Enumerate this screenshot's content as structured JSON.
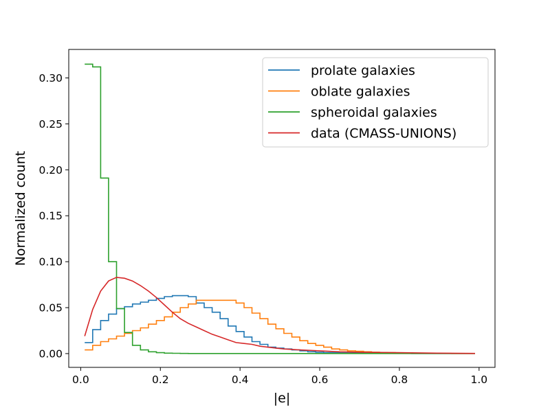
{
  "chart_data": {
    "type": "line",
    "title": "",
    "xlabel": "|e|",
    "ylabel": "Normalized count",
    "xlim": [
      -0.03,
      1.04
    ],
    "ylim": [
      -0.015,
      0.331
    ],
    "x_ticks": [
      0.0,
      0.2,
      0.4,
      0.6,
      0.8,
      1.0
    ],
    "x_tick_labels": [
      "0.0",
      "0.2",
      "0.4",
      "0.6",
      "0.8",
      "1.0"
    ],
    "y_ticks": [
      0.0,
      0.05,
      0.1,
      0.15,
      0.2,
      0.25,
      0.3
    ],
    "y_tick_labels": [
      "0.00",
      "0.05",
      "0.10",
      "0.15",
      "0.20",
      "0.25",
      "0.30"
    ],
    "grid": false,
    "legend_position": "top-right",
    "bin_edges": [
      0.01,
      0.03,
      0.05,
      0.07,
      0.09,
      0.11,
      0.13,
      0.15,
      0.17,
      0.19,
      0.21,
      0.23,
      0.25,
      0.27,
      0.29,
      0.31,
      0.33,
      0.35,
      0.37,
      0.39,
      0.41,
      0.43,
      0.45,
      0.47,
      0.49,
      0.51,
      0.53,
      0.55,
      0.57,
      0.59,
      0.61,
      0.63,
      0.65,
      0.67,
      0.69,
      0.71,
      0.73,
      0.75,
      0.77,
      0.79,
      0.81,
      0.83,
      0.85,
      0.87,
      0.89,
      0.91,
      0.93,
      0.95,
      0.97,
      0.99
    ],
    "series": [
      {
        "name": "prolate galaxies",
        "kind": "step",
        "color": "#1f77b4",
        "values": [
          0.012,
          0.026,
          0.036,
          0.043,
          0.049,
          0.051,
          0.054,
          0.056,
          0.058,
          0.06,
          0.062,
          0.063,
          0.063,
          0.062,
          0.055,
          0.05,
          0.045,
          0.038,
          0.03,
          0.024,
          0.018,
          0.013,
          0.01,
          0.007,
          0.006,
          0.005,
          0.004,
          0.003,
          0.002,
          0.0015,
          0.001,
          0.001,
          0.0008,
          0.0006,
          0.0005,
          0.0004,
          0.0003,
          0.0003,
          0.0002,
          0.0002,
          0.0002,
          0.0001,
          0.0001,
          0.0001,
          0.0001,
          0.0001,
          0.0001,
          0.0001,
          0.0001
        ]
      },
      {
        "name": "oblate galaxies",
        "kind": "step",
        "color": "#ff7f0e",
        "values": [
          0.004,
          0.009,
          0.013,
          0.016,
          0.019,
          0.022,
          0.025,
          0.028,
          0.032,
          0.036,
          0.04,
          0.045,
          0.05,
          0.054,
          0.058,
          0.058,
          0.058,
          0.058,
          0.058,
          0.055,
          0.05,
          0.044,
          0.038,
          0.032,
          0.027,
          0.022,
          0.018,
          0.014,
          0.011,
          0.009,
          0.007,
          0.005,
          0.004,
          0.003,
          0.0025,
          0.002,
          0.0015,
          0.0012,
          0.001,
          0.0008,
          0.0006,
          0.0005,
          0.0004,
          0.0003,
          0.0002,
          0.0002,
          0.0001,
          0.0001,
          0.0001
        ]
      },
      {
        "name": "spheroidal galaxies",
        "kind": "step",
        "color": "#2ca02c",
        "values": [
          0.315,
          0.312,
          0.191,
          0.1,
          0.049,
          0.023,
          0.009,
          0.004,
          0.002,
          0.001,
          0.0005,
          0.0003,
          0.0002,
          0.0001,
          0.0001,
          0.0001,
          0.0001,
          0.0001,
          0.0001,
          0.0001,
          0.0001,
          0.0001,
          0.0001,
          0.0001,
          0.0001,
          0.0001,
          0.0001,
          0.0001,
          0.0001,
          0.0001,
          0.0001,
          0.0001,
          0.0001,
          0.0001,
          0.0001,
          0.0001,
          0.0001,
          0.0001,
          0.0001,
          0.0001,
          0.0001,
          0.0001,
          0.0001,
          0.0001,
          0.0001,
          0.0001,
          0.0001,
          0.0001,
          0.0001
        ]
      },
      {
        "name": "data (CMASS-UNIONS)",
        "kind": "line",
        "color": "#d62728",
        "x": [
          0.01,
          0.03,
          0.05,
          0.07,
          0.09,
          0.11,
          0.13,
          0.15,
          0.17,
          0.19,
          0.21,
          0.23,
          0.25,
          0.27,
          0.29,
          0.31,
          0.33,
          0.35,
          0.37,
          0.39,
          0.41,
          0.43,
          0.45,
          0.47,
          0.49,
          0.51,
          0.55,
          0.6,
          0.65,
          0.7,
          0.8,
          0.9,
          0.99
        ],
        "y": [
          0.019,
          0.048,
          0.068,
          0.079,
          0.083,
          0.082,
          0.079,
          0.074,
          0.068,
          0.061,
          0.053,
          0.045,
          0.038,
          0.033,
          0.029,
          0.025,
          0.021,
          0.018,
          0.015,
          0.012,
          0.011,
          0.01,
          0.008,
          0.007,
          0.006,
          0.005,
          0.004,
          0.003,
          0.002,
          0.0015,
          0.001,
          0.0005,
          0.0002
        ]
      }
    ]
  }
}
